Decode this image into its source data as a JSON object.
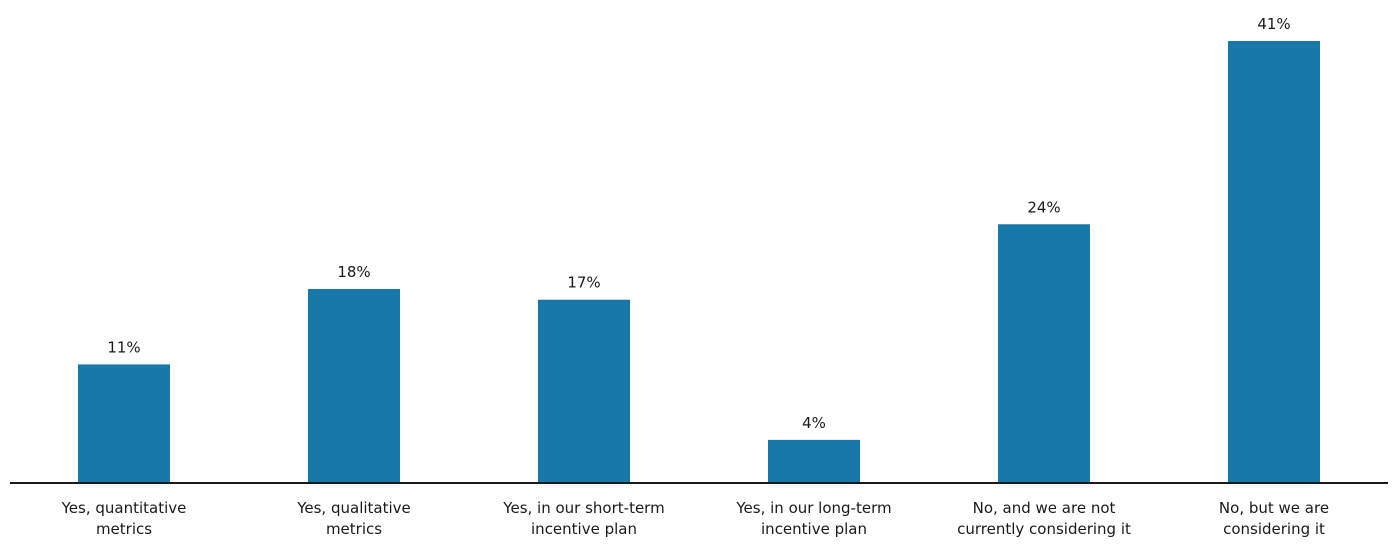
{
  "chart_data": {
    "type": "bar",
    "categories": [
      "Yes, quantitative metrics",
      "Yes, qualitative metrics",
      "Yes, in our short-term incentive plan",
      "Yes, in our long-term incentive plan",
      "No, and we are not currently considering it",
      "No, but we are considering it"
    ],
    "values": [
      11,
      18,
      17,
      4,
      24,
      41
    ],
    "value_labels": [
      "11%",
      "18%",
      "17%",
      "4%",
      "24%",
      "41%"
    ],
    "color": "#1778a9"
  }
}
